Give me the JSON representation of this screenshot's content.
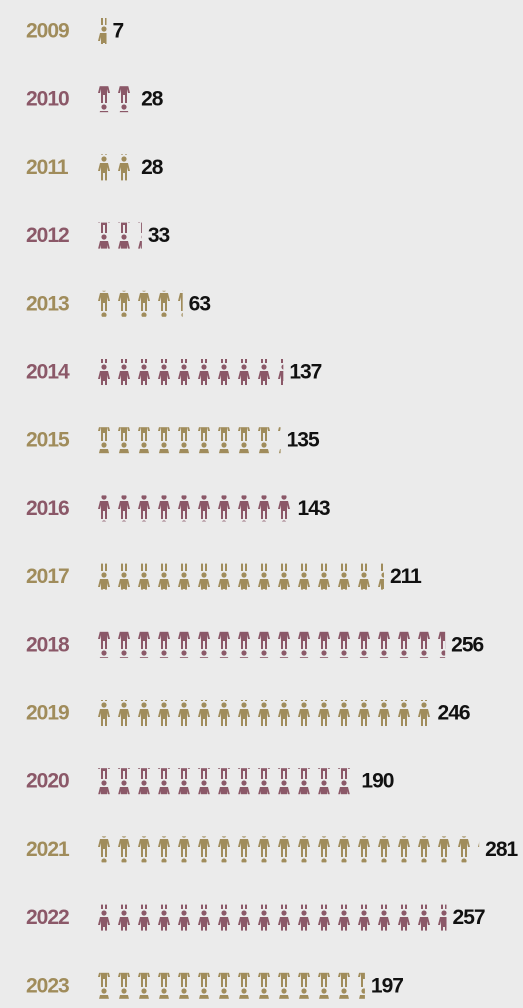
{
  "chart_data": {
    "type": "pictogram",
    "categories": [
      "2009",
      "2010",
      "2011",
      "2012",
      "2013",
      "2014",
      "2015",
      "2016",
      "2017",
      "2018",
      "2019",
      "2020",
      "2021",
      "2022",
      "2023"
    ],
    "values": [
      7,
      28,
      28,
      33,
      63,
      137,
      135,
      143,
      211,
      256,
      246,
      190,
      281,
      257,
      197
    ],
    "colors": [
      "#a08c5b",
      "#8b5868"
    ]
  }
}
